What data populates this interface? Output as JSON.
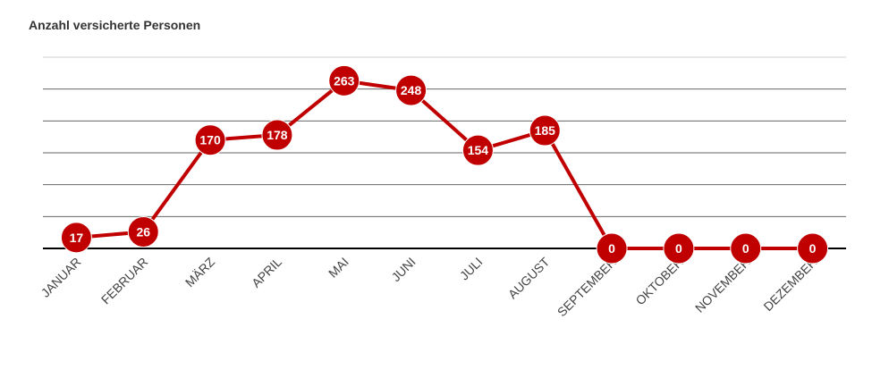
{
  "chart_data": {
    "type": "line",
    "title": "Anzahl versicherte Personen",
    "categories": [
      "JANUAR",
      "FEBRUAR",
      "MÄRZ",
      "APRIL",
      "MAI",
      "JUNI",
      "JULI",
      "AUGUST",
      "SEPTEMBER",
      "OKTOBER",
      "NOVEMBER",
      "DEZEMBER"
    ],
    "series": [
      {
        "color": "#c00000",
        "values": [
          17,
          26,
          170,
          178,
          263,
          248,
          154,
          185,
          0,
          0,
          0,
          0
        ]
      }
    ],
    "ylim": [
      0,
      300
    ],
    "yticks": [
      0,
      50,
      100,
      150,
      200,
      250,
      300
    ],
    "grid": true
  }
}
